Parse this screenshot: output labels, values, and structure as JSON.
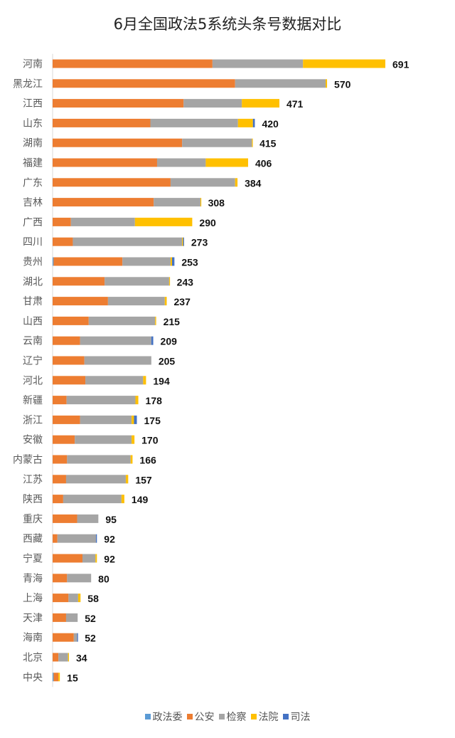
{
  "chart_data": {
    "type": "bar",
    "orientation": "horizontal",
    "stacked": true,
    "title": "6月全国政法5系统头条号数据对比",
    "categories": [
      "河南",
      "黑龙江",
      "江西",
      "山东",
      "湖南",
      "福建",
      "广东",
      "吉林",
      "广西",
      "四川",
      "贵州",
      "湖北",
      "甘肃",
      "山西",
      "云南",
      "辽宁",
      "河北",
      "新疆",
      "浙江",
      "安徽",
      "内蒙古",
      "江苏",
      "陕西",
      "重庆",
      "西藏",
      "宁夏",
      "青海",
      "上海",
      "天津",
      "海南",
      "北京",
      "中央"
    ],
    "totals": [
      691,
      570,
      471,
      420,
      415,
      406,
      384,
      308,
      290,
      273,
      253,
      243,
      237,
      215,
      209,
      205,
      194,
      178,
      175,
      170,
      166,
      157,
      149,
      95,
      92,
      92,
      80,
      58,
      52,
      52,
      34,
      15
    ],
    "series": [
      {
        "name": "政法委",
        "color": "#5b9bd5",
        "values": [
          0,
          0,
          0,
          0,
          0,
          0,
          0,
          0,
          0,
          0,
          2,
          0,
          0,
          0,
          0,
          0,
          0,
          0,
          0,
          0,
          0,
          0,
          0,
          0,
          0,
          0,
          0,
          0,
          0,
          0,
          0,
          2
        ]
      },
      {
        "name": "公安",
        "color": "#ed7d31",
        "values": [
          332,
          379,
          272,
          203,
          269,
          217,
          245,
          210,
          38,
          42,
          143,
          108,
          115,
          75,
          57,
          66,
          68,
          29,
          57,
          46,
          30,
          28,
          22,
          51,
          10,
          62,
          30,
          33,
          28,
          44,
          12,
          10
        ]
      },
      {
        "name": "检察",
        "color": "#a5a5a5",
        "values": [
          188,
          188,
          121,
          182,
          145,
          101,
          134,
          97,
          133,
          227,
          100,
          134,
          118,
          138,
          148,
          139,
          120,
          143,
          107,
          118,
          132,
          124,
          121,
          44,
          80,
          27,
          50,
          20,
          24,
          7,
          20,
          0
        ]
      },
      {
        "name": "法院",
        "color": "#ffc000",
        "values": [
          171,
          3,
          78,
          31,
          1,
          88,
          5,
          1,
          119,
          2,
          3,
          1,
          4,
          2,
          0,
          0,
          6,
          6,
          5,
          6,
          4,
          5,
          6,
          0,
          0,
          3,
          0,
          5,
          0,
          0,
          2,
          3
        ]
      },
      {
        "name": "司法",
        "color": "#4472c4",
        "values": [
          0,
          0,
          0,
          4,
          0,
          0,
          0,
          0,
          0,
          2,
          5,
          0,
          0,
          0,
          4,
          0,
          0,
          0,
          6,
          0,
          0,
          0,
          0,
          0,
          2,
          0,
          0,
          0,
          0,
          1,
          0,
          0
        ]
      }
    ],
    "xlim": [
      0,
      691
    ],
    "grid": false,
    "legend_position": "bottom"
  }
}
